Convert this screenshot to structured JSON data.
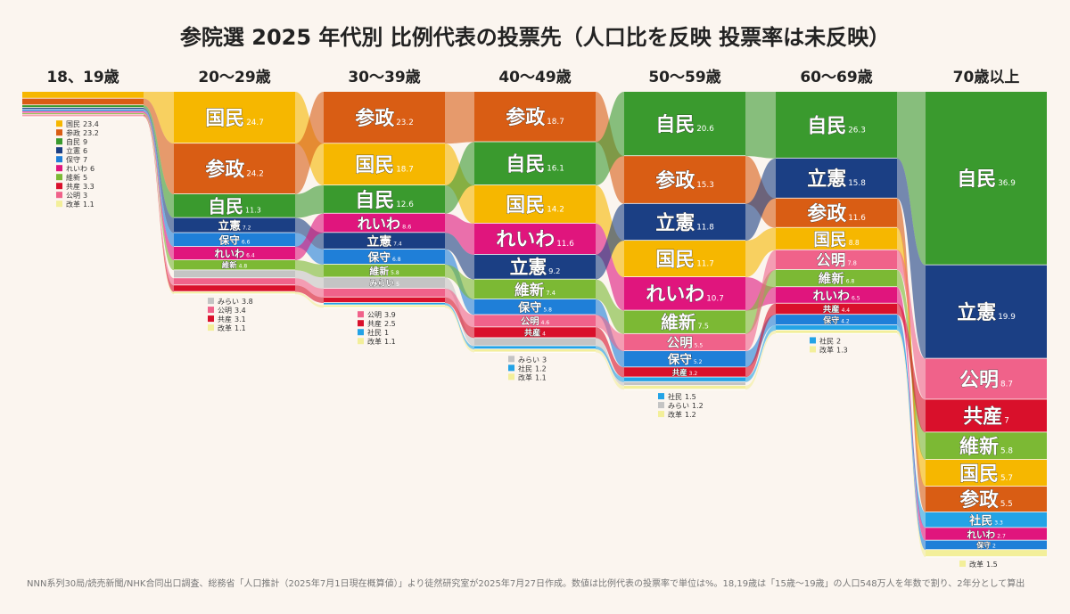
{
  "title": "参院選 2025 年代別 比例代表の投票先（人口比を反映 投票率は未反映）",
  "note": "NNN系列30局/読売新聞/NHK合同出口調査、総務省「人口推計（2025年7月1日現在概算値）」より徒然研究室が2025年7月27日作成。数値は比例代表の投票率で単位は%。18,19歳は「15歳〜19歳」の人口548万人を年数で割り、2年分として算出",
  "chart_data": {
    "type": "bar",
    "stacked": true,
    "unit": "%",
    "party_colors": {
      "自民": "#3a9a2e",
      "立憲": "#1b3f84",
      "公明": "#f0628a",
      "共産": "#d9102b",
      "維新": "#7cb934",
      "国民": "#f6b700",
      "参政": "#d95d14",
      "社民": "#23a3e6",
      "れいわ": "#e0157d",
      "保守": "#1f7fd8",
      "みらい": "#c4c4c4",
      "改革": "#f3ef9a"
    },
    "columns": [
      {
        "label": "18、19歳",
        "population_weight": 5.4,
        "parties": [
          [
            "国民",
            23.4
          ],
          [
            "参政",
            23.2
          ],
          [
            "自民",
            9
          ],
          [
            "立憲",
            6
          ],
          [
            "保守",
            7
          ],
          [
            "れいわ",
            6
          ],
          [
            "維新",
            5
          ],
          [
            "共産",
            3.3
          ],
          [
            "公明",
            3
          ],
          [
            "改革",
            1.1
          ]
        ]
      },
      {
        "label": "20〜29歳",
        "population_weight": 43.5,
        "parties": [
          [
            "国民",
            24.7
          ],
          [
            "参政",
            24.2
          ],
          [
            "自民",
            11.3
          ],
          [
            "立憲",
            7.2
          ],
          [
            "保守",
            6.6
          ],
          [
            "れいわ",
            6.4
          ],
          [
            "維新",
            4.8
          ],
          [
            "みらい",
            3.8
          ],
          [
            "公明",
            3.4
          ],
          [
            "共産",
            3.1
          ],
          [
            "改革",
            1.1
          ]
        ]
      },
      {
        "label": "30〜39歳",
        "population_weight": 46.4,
        "parties": [
          [
            "参政",
            23.2
          ],
          [
            "国民",
            18.7
          ],
          [
            "自民",
            12.6
          ],
          [
            "れいわ",
            8.6
          ],
          [
            "立憲",
            7.4
          ],
          [
            "保守",
            6.8
          ],
          [
            "維新",
            5.8
          ],
          [
            "みらい",
            5
          ],
          [
            "公明",
            3.9
          ],
          [
            "共産",
            2.5
          ],
          [
            "社民",
            1
          ],
          [
            "改革",
            1.1
          ]
        ]
      },
      {
        "label": "40〜49歳",
        "population_weight": 56,
        "parties": [
          [
            "参政",
            18.7
          ],
          [
            "自民",
            16.1
          ],
          [
            "国民",
            14.2
          ],
          [
            "れいわ",
            11.6
          ],
          [
            "立憲",
            9.2
          ],
          [
            "維新",
            7.4
          ],
          [
            "保守",
            5.8
          ],
          [
            "公明",
            4.6
          ],
          [
            "共産",
            4
          ],
          [
            "みらい",
            3
          ],
          [
            "社民",
            1.2
          ],
          [
            "改革",
            1.1
          ]
        ]
      },
      {
        "label": "50〜59歳",
        "population_weight": 64,
        "parties": [
          [
            "自民",
            20.6
          ],
          [
            "参政",
            15.3
          ],
          [
            "立憲",
            11.8
          ],
          [
            "国民",
            11.7
          ],
          [
            "れいわ",
            10.7
          ],
          [
            "維新",
            7.5
          ],
          [
            "公明",
            5.5
          ],
          [
            "保守",
            5.2
          ],
          [
            "共産",
            3.2
          ],
          [
            "社民",
            1.5
          ],
          [
            "みらい",
            1.2
          ],
          [
            "改革",
            1.2
          ]
        ]
      },
      {
        "label": "60〜69歳",
        "population_weight": 52,
        "parties": [
          [
            "自民",
            26.3
          ],
          [
            "立憲",
            15.8
          ],
          [
            "参政",
            11.6
          ],
          [
            "国民",
            8.8
          ],
          [
            "公明",
            7.8
          ],
          [
            "維新",
            6.8
          ],
          [
            "れいわ",
            6.5
          ],
          [
            "共産",
            4.4
          ],
          [
            "保守",
            4.2
          ],
          [
            "社民",
            2
          ],
          [
            "改革",
            1.3
          ]
        ]
      },
      {
        "label": "70歳以上",
        "population_weight": 100,
        "parties": [
          [
            "自民",
            36.9
          ],
          [
            "立憲",
            19.9
          ],
          [
            "公明",
            8.7
          ],
          [
            "共産",
            7
          ],
          [
            "維新",
            5.8
          ],
          [
            "国民",
            5.7
          ],
          [
            "参政",
            5.5
          ],
          [
            "社民",
            3.3
          ],
          [
            "れいわ",
            2.7
          ],
          [
            "保守",
            2
          ],
          [
            "改革",
            1.5
          ]
        ]
      }
    ]
  }
}
